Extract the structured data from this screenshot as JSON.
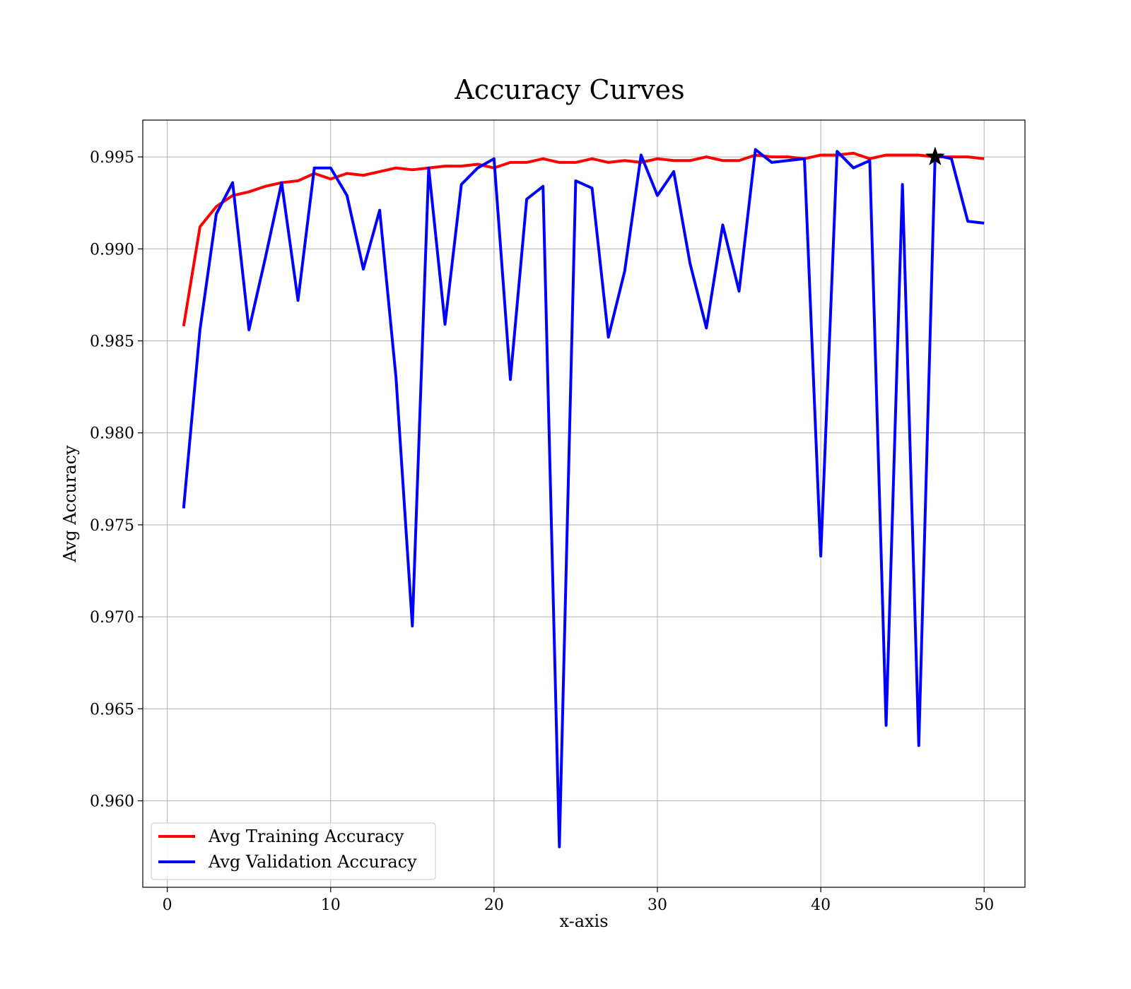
{
  "chart_data": {
    "type": "line",
    "title": "Accuracy Curves",
    "xlabel": "x-axis",
    "ylabel": "Avg Accuracy",
    "xlim": [
      -1.5,
      52.5
    ],
    "ylim": [
      0.9553,
      0.997
    ],
    "xticks": [
      0,
      10,
      20,
      30,
      40,
      50
    ],
    "xtick_labels": [
      "0",
      "10",
      "20",
      "30",
      "40",
      "50"
    ],
    "yticks": [
      0.96,
      0.965,
      0.97,
      0.975,
      0.98,
      0.985,
      0.99,
      0.995
    ],
    "ytick_labels": [
      "0.960",
      "0.965",
      "0.970",
      "0.975",
      "0.980",
      "0.985",
      "0.990",
      "0.995"
    ],
    "grid": true,
    "legend_position": "lower-left",
    "x": [
      1,
      2,
      3,
      4,
      5,
      6,
      7,
      8,
      9,
      10,
      11,
      12,
      13,
      14,
      15,
      16,
      17,
      18,
      19,
      20,
      21,
      22,
      23,
      24,
      25,
      26,
      27,
      28,
      29,
      30,
      31,
      32,
      33,
      34,
      35,
      36,
      37,
      38,
      39,
      40,
      41,
      42,
      43,
      44,
      45,
      46,
      47,
      48,
      49,
      50
    ],
    "series": [
      {
        "name": "Avg Training Accuracy",
        "color": "#ff0000",
        "values": [
          0.9858,
          0.9912,
          0.9923,
          0.9929,
          0.9931,
          0.9934,
          0.9936,
          0.9937,
          0.9941,
          0.9938,
          0.9941,
          0.994,
          0.9942,
          0.9944,
          0.9943,
          0.9944,
          0.9945,
          0.9945,
          0.9946,
          0.9944,
          0.9947,
          0.9947,
          0.9949,
          0.9947,
          0.9947,
          0.9949,
          0.9947,
          0.9948,
          0.9947,
          0.9949,
          0.9948,
          0.9948,
          0.995,
          0.9948,
          0.9948,
          0.9951,
          0.995,
          0.995,
          0.9949,
          0.9951,
          0.9951,
          0.9952,
          0.9949,
          0.9951,
          0.9951,
          0.9951,
          0.995,
          0.995,
          0.995,
          0.9949
        ]
      },
      {
        "name": "Avg Validation Accuracy",
        "color": "#0000ff",
        "values": [
          0.9759,
          0.9856,
          0.9919,
          0.9936,
          0.9856,
          0.9895,
          0.9936,
          0.9872,
          0.9944,
          0.9944,
          0.9929,
          0.9889,
          0.9921,
          0.983,
          0.9695,
          0.9944,
          0.9859,
          0.9935,
          0.9944,
          0.9949,
          0.9829,
          0.9927,
          0.9934,
          0.9575,
          0.9937,
          0.9933,
          0.9852,
          0.9888,
          0.9951,
          0.9929,
          0.9942,
          0.9892,
          0.9857,
          0.9913,
          0.9877,
          0.9954,
          0.9947,
          0.9948,
          0.9949,
          0.9733,
          0.9953,
          0.9944,
          0.9948,
          0.9641,
          0.9935,
          0.963,
          0.9951,
          0.9949,
          0.9915,
          0.9914
        ]
      }
    ],
    "marker": {
      "shape": "star",
      "x": 47,
      "y": 0.995,
      "color": "#000000"
    }
  }
}
